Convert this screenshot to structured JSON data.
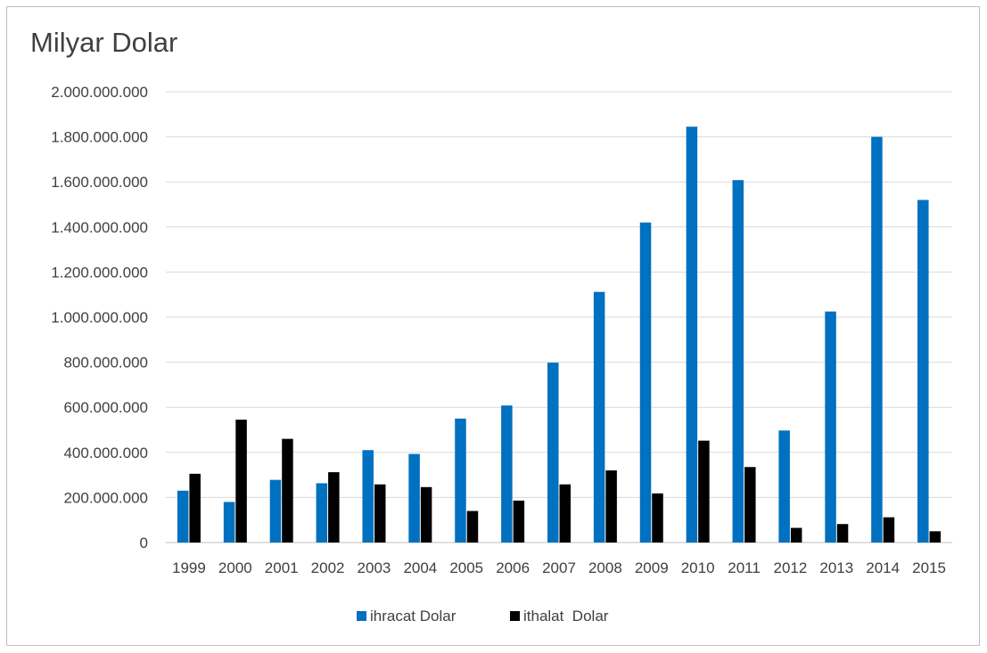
{
  "chart_data": {
    "type": "bar",
    "title": "Milyar Dolar",
    "xlabel": "",
    "ylabel": "",
    "categories": [
      "1999",
      "2000",
      "2001",
      "2002",
      "2003",
      "2004",
      "2005",
      "2006",
      "2007",
      "2008",
      "2009",
      "2010",
      "2011",
      "2012",
      "2013",
      "2014",
      "2015"
    ],
    "series": [
      {
        "name": "ihracat Dolar",
        "color": "#0070c0",
        "values": [
          230000000,
          180000000,
          278000000,
          263000000,
          410000000,
          393000000,
          550000000,
          608000000,
          798000000,
          1112000000,
          1420000000,
          1845000000,
          1608000000,
          497000000,
          1025000000,
          1800000000,
          1520000000
        ]
      },
      {
        "name": "ithalat  Dolar",
        "color": "#000000",
        "values": [
          305000000,
          545000000,
          460000000,
          312000000,
          258000000,
          246000000,
          140000000,
          186000000,
          258000000,
          320000000,
          218000000,
          452000000,
          335000000,
          65000000,
          82000000,
          112000000,
          50000000
        ]
      }
    ],
    "ylim": [
      0,
      2000000000
    ],
    "yticks": [
      "0",
      "200.000.000",
      "400.000.000",
      "600.000.000",
      "800.000.000",
      "1.000.000.000",
      "1.200.000.000",
      "1.400.000.000",
      "1.600.000.000",
      "1.800.000.000",
      "2.000.000.000"
    ],
    "grid": true,
    "legend_position": "bottom"
  }
}
